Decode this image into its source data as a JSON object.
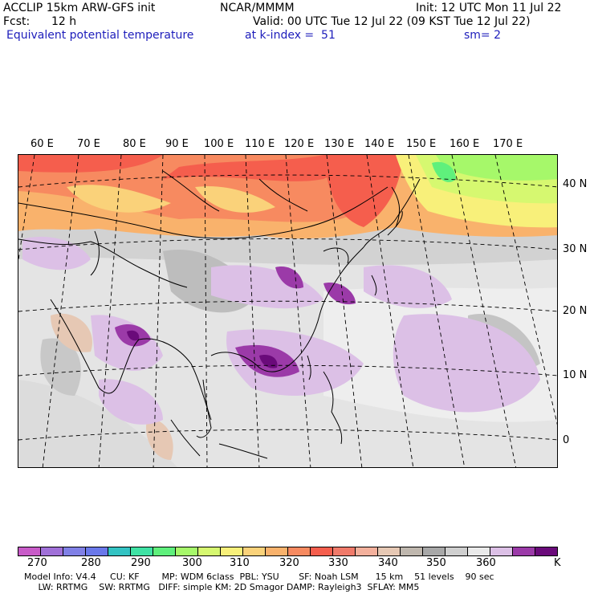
{
  "header": {
    "model": "ACCLIP 15km ARW-GFS init",
    "center": "NCAR/MMMM",
    "init": "Init: 12 UTC Mon 11 Jul 22",
    "fcst_label": "Fcst:",
    "fcst_value": "12 h",
    "valid": "Valid: 00 UTC Tue 12 Jul 22 (09 KST Tue 12 Jul 22)",
    "field": "Equivalent potential temperature",
    "level": "at k-index =  51",
    "smooth": "sm= 2"
  },
  "map": {
    "lon_labels": [
      "60 E",
      "70 E",
      "80 E",
      "90 E",
      "100 E",
      "110 E",
      "120 E",
      "130 E",
      "140 E",
      "150 E",
      "160 E",
      "170 E"
    ],
    "lat_labels": [
      "40 N",
      "30 N",
      "20 N",
      "10 N",
      "0"
    ]
  },
  "colorbar": {
    "colors": [
      "#c85bc8",
      "#a070d8",
      "#8080e6",
      "#6a78ea",
      "#33c3c3",
      "#3fe2a4",
      "#5ff07c",
      "#a6f86a",
      "#d6f870",
      "#f8f07a",
      "#fad27a",
      "#f9b26c",
      "#f78a60",
      "#f55e4d",
      "#f07a6a",
      "#f3b09c",
      "#e6c8b4",
      "#bfb7ae",
      "#a8a8a8",
      "#cfcfcf",
      "#eaeaea",
      "#dcc0e6",
      "#9b3aa8",
      "#6a0a7a"
    ],
    "ticks": [
      "270",
      "280",
      "290",
      "300",
      "310",
      "320",
      "330",
      "340",
      "350",
      "360"
    ],
    "unit": "K"
  },
  "footer": {
    "line1": "Model Info: V4.4     CU: KF        MP: WDM 6class  PBL: YSU       SF: Noah LSM      15 km    51 levels    90 sec",
    "line2": "     LW: RRTMG    SW: RRTMG   DIFF: simple KM: 2D Smagor DAMP: Rayleigh3  SFLAY: MM5"
  }
}
